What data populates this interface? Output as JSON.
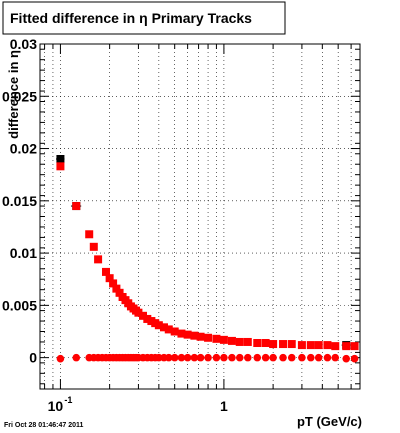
{
  "chart_data": {
    "type": "scatter",
    "title": "Fitted difference in η  Primary Tracks",
    "xlabel": "pT (GeV/c)",
    "ylabel": "difference in η",
    "xscale": "log",
    "xlim": [
      0.075,
      6.8
    ],
    "ylim": [
      -0.003,
      0.03
    ],
    "grid": true,
    "x_tick_labels": [
      "10",
      "-1",
      "1"
    ],
    "y_tick_labels": [
      "0",
      "0.005",
      "0.01",
      "0.015",
      "0.02",
      "0.025",
      "0.03"
    ],
    "series": [
      {
        "color": "#000000",
        "marker": "square",
        "x": [
          0.1,
          0.125,
          5.6
        ],
        "y": [
          0.019,
          0.0145,
          0.0012
        ],
        "xerr_low": [
          0.006,
          0.009,
          0.35
        ],
        "xerr_high": [
          0.006,
          0.009,
          0.35
        ]
      },
      {
        "color": "#ff0000",
        "marker": "square",
        "x": [
          0.1,
          0.125,
          0.15,
          0.16,
          0.17,
          0.19,
          0.2,
          0.21,
          0.22,
          0.23,
          0.24,
          0.25,
          0.26,
          0.27,
          0.28,
          0.29,
          0.3,
          0.32,
          0.34,
          0.36,
          0.38,
          0.4,
          0.43,
          0.46,
          0.5,
          0.55,
          0.6,
          0.66,
          0.72,
          0.8,
          0.9,
          1.0,
          1.12,
          1.25,
          1.4,
          1.6,
          1.8,
          2.0,
          2.3,
          2.6,
          3.0,
          3.4,
          3.8,
          4.3,
          4.8,
          5.6,
          6.3
        ],
        "y": [
          0.0183,
          0.0145,
          0.0118,
          0.0106,
          0.0094,
          0.0082,
          0.0076,
          0.0071,
          0.0066,
          0.0062,
          0.0058,
          0.0055,
          0.0052,
          0.0049,
          0.0047,
          0.0045,
          0.0043,
          0.004,
          0.0037,
          0.0035,
          0.0033,
          0.0031,
          0.0029,
          0.0027,
          0.0025,
          0.0023,
          0.0022,
          0.0021,
          0.002,
          0.0019,
          0.0018,
          0.0017,
          0.0016,
          0.0015,
          0.0015,
          0.0014,
          0.0014,
          0.0013,
          0.0013,
          0.0013,
          0.0012,
          0.0012,
          0.0012,
          0.0012,
          0.0011,
          0.0011,
          0.0011
        ]
      },
      {
        "color": "#ff0000",
        "marker": "circle",
        "x": [
          0.1,
          0.125,
          0.15,
          0.16,
          0.17,
          0.18,
          0.19,
          0.2,
          0.21,
          0.22,
          0.23,
          0.24,
          0.25,
          0.26,
          0.27,
          0.28,
          0.29,
          0.3,
          0.32,
          0.34,
          0.36,
          0.38,
          0.4,
          0.43,
          0.46,
          0.5,
          0.55,
          0.6,
          0.66,
          0.72,
          0.8,
          0.9,
          1.0,
          1.12,
          1.25,
          1.4,
          1.6,
          1.8,
          2.0,
          2.3,
          2.6,
          3.0,
          3.4,
          3.8,
          4.3,
          4.8,
          5.6,
          6.3
        ],
        "y": [
          -0.0001,
          0.0,
          0.0,
          0.0,
          0.0,
          0.0,
          0.0,
          0.0,
          0.0,
          0.0,
          0.0,
          0.0,
          0.0,
          0.0,
          0.0,
          0.0,
          0.0,
          0.0,
          0.0,
          0.0,
          0.0,
          0.0,
          0.0,
          0.0,
          0.0,
          0.0,
          0.0,
          0.0,
          0.0,
          0.0,
          0.0,
          0.0,
          0.0,
          0.0,
          0.0,
          0.0,
          0.0,
          0.0,
          0.0,
          0.0,
          0.0,
          0.0,
          0.0,
          0.0,
          0.0,
          0.0,
          -0.0001,
          -0.0001
        ]
      }
    ]
  },
  "footer": {
    "timestamp": "Fri Oct 28 01:46:47 2011"
  }
}
